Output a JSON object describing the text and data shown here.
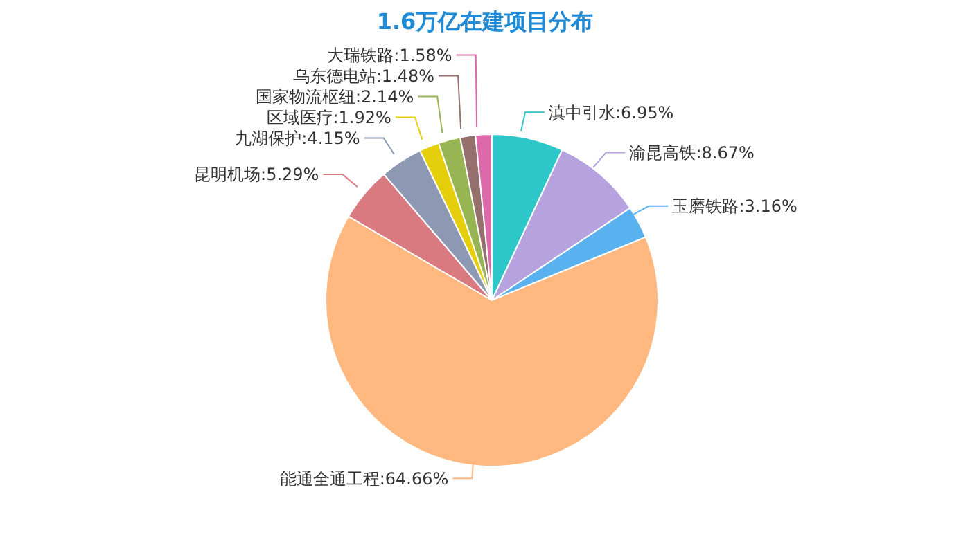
{
  "chart_data": {
    "type": "pie",
    "title": "1.6万亿在建项目分布",
    "categories": [
      "滇中引水",
      "渝昆高铁",
      "玉磨铁路",
      "能通全通工程",
      "昆明机场",
      "九湖保护",
      "区域医疗",
      "国家物流枢纽",
      "乌东德电站",
      "大瑞铁路"
    ],
    "values": [
      6.95,
      8.67,
      3.16,
      64.66,
      5.29,
      4.15,
      1.92,
      2.14,
      1.48,
      1.58
    ],
    "value_labels": [
      ":6.95%",
      ":8.67%",
      ":3.16%",
      ":64.66%",
      ":5.29%",
      ":4.15%",
      ":1.92%",
      ":2.14%",
      ":1.48%",
      ":1.58%"
    ],
    "colors": [
      "#2ec7c9",
      "#b6a2de",
      "#5ab1ef",
      "#ffb980",
      "#d87a80",
      "#8d98b3",
      "#e5cf0d",
      "#97b552",
      "#95706d",
      "#dc69aa"
    ]
  }
}
